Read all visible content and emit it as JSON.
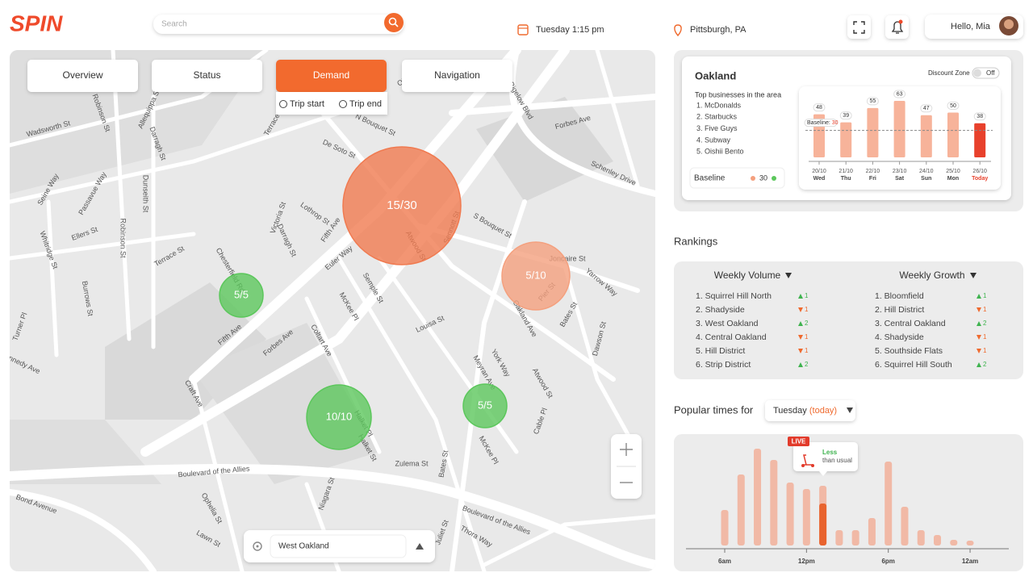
{
  "header": {
    "logo": "SPIN",
    "search_placeholder": "Search",
    "datetime": "Tuesday 1:15 pm",
    "location": "Pittsburgh, PA",
    "greeting": "Hello, Mia"
  },
  "map": {
    "tabs": [
      "Overview",
      "Status",
      "Demand",
      "Navigation"
    ],
    "active_tab": 2,
    "active_color": "#f26a2e",
    "demand_options": [
      "Trip start",
      "Trip end"
    ],
    "zones": [
      {
        "label": "15/30",
        "color": "#f07a50"
      },
      {
        "label": "5/10",
        "color": "#f4a07e"
      },
      {
        "label": "5/5",
        "color": "#5cc75c"
      },
      {
        "label": "10/10",
        "color": "#5cc75c"
      },
      {
        "label": "5/5",
        "color": "#5cc75c"
      }
    ],
    "streets": [
      "Wadsworth St",
      "Robinson St",
      "Allequippa St",
      "Darragh St",
      "Terrace St",
      "Lothrop St",
      "Victoria St",
      "Darragh St",
      "Fifth Ave",
      "Chesterfield Rd",
      "Euler Way",
      "Semple St",
      "McKee Pl",
      "Coltart Ave",
      "Forbes Ave",
      "Fifth Ave",
      "Louisa St",
      "Atwood St",
      "Oakland Ave",
      "Bates St",
      "Joncaire St",
      "Pier St",
      "Yarrow Way",
      "Boulevard of the Allies",
      "Zulema St",
      "Halket Pl",
      "Halket St",
      "Craft Ave",
      "Ophelia St",
      "Lawn St",
      "Niagara St",
      "Juliet St",
      "Thora Way",
      "McKee Pl",
      "York Way",
      "Meyran Ave",
      "Atwood St",
      "Cable Pl",
      "Dawson St",
      "Schenley Drive",
      "Forbes Ave",
      "De Soto St",
      "N Bouquet St",
      "O'Hara St",
      "Bigelow Blvd",
      "Seine Way",
      "Passavue Way",
      "Dunseith St",
      "Ellers St",
      "Whitridge St",
      "Burrows St",
      "S Bouquet St",
      "Sennott St",
      "Bond Avenue",
      "Robinson St",
      "Terrace St",
      "Turner Pl",
      "Kennedy Ave",
      "Boulevard of the Allies",
      "Bates St"
    ],
    "location_search": "West Oakland"
  },
  "area": {
    "name": "Oakland",
    "discount_zone": "Discount Zone",
    "discount_state": "Off",
    "businesses_title": "Top businesses in the area",
    "businesses": [
      "1. McDonalds",
      "2. Starbucks",
      "3. Five Guys",
      "4. Subway",
      "5. Oishii Bento"
    ],
    "baseline_title": "Baseline",
    "chart_data": {
      "type": "bar",
      "categories": [
        "20/10",
        "21/10",
        "22/10",
        "23/10",
        "24/10",
        "25/10",
        "26/10"
      ],
      "days": [
        "Wed",
        "Thu",
        "Fri",
        "Sat",
        "Sun",
        "Mon",
        "Today"
      ],
      "values": [
        48,
        39,
        55,
        63,
        47,
        50,
        38
      ],
      "color": "#f7b39a",
      "highlight_color": "#e8412c",
      "highlight_index": 6,
      "ylim": [
        0,
        72
      ],
      "baseline_label": "Baseline:",
      "baseline": 30
    }
  },
  "rankings": {
    "title": "Rankings",
    "columns": [
      {
        "title": "Weekly Volume",
        "items": [
          {
            "name": "1. Squirrel Hill North",
            "direction": "up",
            "change": 1
          },
          {
            "name": "2. Shadyside",
            "direction": "down",
            "change": 1
          },
          {
            "name": "3. West Oakland",
            "direction": "up",
            "change": 2
          },
          {
            "name": "4. Central Oakland",
            "direction": "down",
            "change": 1
          },
          {
            "name": "5. Hill District",
            "direction": "down",
            "change": 1
          },
          {
            "name": "6. Strip District",
            "direction": "up",
            "change": 2
          }
        ]
      },
      {
        "title": "Weekly Growth",
        "items": [
          {
            "name": "1. Bloomfield",
            "direction": "up",
            "change": 1
          },
          {
            "name": "2. Hill District",
            "direction": "down",
            "change": 1
          },
          {
            "name": "3. Central Oakland",
            "direction": "up",
            "change": 2
          },
          {
            "name": "4. Shadyside",
            "direction": "down",
            "change": 1
          },
          {
            "name": "5. Southside Flats",
            "direction": "down",
            "change": 1
          },
          {
            "name": "6. Squirrel Hill South",
            "direction": "up",
            "change": 2
          }
        ]
      }
    ]
  },
  "popular": {
    "title": "Popular times for",
    "day": "Tuesday",
    "day_note": "(today)",
    "live_badge": "LIVE",
    "live_status": "Less",
    "live_note": "than usual",
    "chart_data": {
      "type": "bar",
      "categories": [
        "6am",
        null,
        null,
        null,
        null,
        "12pm",
        null,
        null,
        null,
        null,
        "6pm",
        null,
        null,
        null,
        null,
        "12am"
      ],
      "series": [
        {
          "name": "usual",
          "color": "#f2b49e",
          "values": [
            44,
            88,
            120,
            106,
            78,
            70,
            74,
            19,
            19,
            34,
            104,
            48,
            19,
            13,
            7,
            6
          ]
        },
        {
          "name": "live",
          "color": "#e8632e",
          "values": [
            null,
            null,
            null,
            null,
            null,
            null,
            52,
            null,
            null,
            null,
            null,
            null,
            null,
            null,
            null,
            null
          ]
        }
      ],
      "ylim": [
        0,
        130
      ]
    }
  }
}
